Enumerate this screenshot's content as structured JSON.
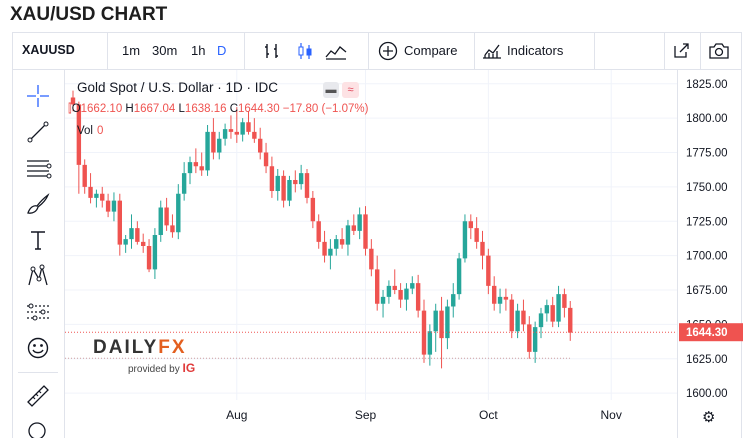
{
  "page": {
    "title": "XAU/USD CHART"
  },
  "toolbar": {
    "symbol": "XAUUSD",
    "timeframes": [
      "1m",
      "30m",
      "1h",
      "D"
    ],
    "compare_label": "Compare",
    "indicators_label": "Indicators"
  },
  "legend": {
    "title": "Gold Spot / U.S. Dollar · 1D · IDC",
    "open_key": "O",
    "open": "1662.10",
    "high_key": "H",
    "high": "1667.04",
    "low_key": "L",
    "low": "1638.16",
    "close_key": "C",
    "close": "1644.30",
    "change": "−17.80 (−1.07%)",
    "volume_label": "Vol",
    "volume": "0"
  },
  "branding": {
    "logo": "DAILYFX",
    "logo_a": "DAILY",
    "logo_b": "FX",
    "provided_by": "provided by",
    "ig": "IG"
  },
  "colors": {
    "up": "#26a69a",
    "down": "#ef5350",
    "accent": "#2962ff",
    "grid": "#f0f3fa",
    "price_tag": "#ef5350"
  },
  "chart_data": {
    "type": "candlestick",
    "title": "Gold Spot / U.S. Dollar",
    "ylim": [
      1595,
      1835
    ],
    "y_ticks": [
      1600,
      1625,
      1650,
      1675,
      1700,
      1725,
      1750,
      1775,
      1800,
      1825
    ],
    "y_tick_labels": [
      "1600.00",
      "1625.00",
      "1650.00",
      "1675.00",
      "1700.00",
      "1725.00",
      "1750.00",
      "1775.00",
      "1800.00",
      "1825.00"
    ],
    "x_ticks": [
      {
        "label": "Aug",
        "index": 28
      },
      {
        "label": "Sep",
        "index": 50
      },
      {
        "label": "Oct",
        "index": 71
      },
      {
        "label": "Nov",
        "index": 92
      }
    ],
    "last_price": 1644.3,
    "last_price_label": "1644.30",
    "candles": [
      [
        1815,
        1820,
        1805,
        1810
      ],
      [
        1810,
        1812,
        1745,
        1766
      ],
      [
        1766,
        1770,
        1745,
        1750
      ],
      [
        1750,
        1760,
        1738,
        1742
      ],
      [
        1742,
        1748,
        1735,
        1745
      ],
      [
        1745,
        1750,
        1735,
        1740
      ],
      [
        1740,
        1745,
        1728,
        1732
      ],
      [
        1732,
        1746,
        1725,
        1740
      ],
      [
        1740,
        1745,
        1700,
        1708
      ],
      [
        1708,
        1715,
        1702,
        1712
      ],
      [
        1712,
        1730,
        1705,
        1720
      ],
      [
        1720,
        1725,
        1708,
        1710
      ],
      [
        1710,
        1716,
        1702,
        1707
      ],
      [
        1707,
        1712,
        1688,
        1690
      ],
      [
        1690,
        1720,
        1683,
        1715
      ],
      [
        1715,
        1740,
        1710,
        1735
      ],
      [
        1735,
        1742,
        1718,
        1722
      ],
      [
        1722,
        1730,
        1713,
        1717
      ],
      [
        1717,
        1752,
        1712,
        1745
      ],
      [
        1745,
        1768,
        1740,
        1760
      ],
      [
        1760,
        1772,
        1752,
        1768
      ],
      [
        1768,
        1778,
        1760,
        1765
      ],
      [
        1765,
        1775,
        1758,
        1762
      ],
      [
        1762,
        1795,
        1758,
        1790
      ],
      [
        1790,
        1800,
        1770,
        1775
      ],
      [
        1775,
        1790,
        1770,
        1785
      ],
      [
        1785,
        1796,
        1780,
        1792
      ],
      [
        1792,
        1802,
        1785,
        1790
      ],
      [
        1790,
        1808,
        1782,
        1788
      ],
      [
        1788,
        1800,
        1783,
        1797
      ],
      [
        1797,
        1805,
        1788,
        1790
      ],
      [
        1790,
        1800,
        1782,
        1785
      ],
      [
        1785,
        1793,
        1770,
        1775
      ],
      [
        1775,
        1782,
        1760,
        1765
      ],
      [
        1765,
        1772,
        1742,
        1747
      ],
      [
        1747,
        1763,
        1740,
        1758
      ],
      [
        1758,
        1762,
        1735,
        1740
      ],
      [
        1740,
        1758,
        1736,
        1755
      ],
      [
        1755,
        1762,
        1746,
        1752
      ],
      [
        1752,
        1766,
        1748,
        1760
      ],
      [
        1760,
        1763,
        1738,
        1742
      ],
      [
        1742,
        1747,
        1720,
        1725
      ],
      [
        1725,
        1730,
        1705,
        1710
      ],
      [
        1710,
        1718,
        1695,
        1700
      ],
      [
        1700,
        1712,
        1690,
        1705
      ],
      [
        1705,
        1715,
        1700,
        1712
      ],
      [
        1712,
        1720,
        1705,
        1708
      ],
      [
        1708,
        1726,
        1700,
        1722
      ],
      [
        1722,
        1730,
        1715,
        1718
      ],
      [
        1718,
        1735,
        1712,
        1730
      ],
      [
        1730,
        1736,
        1700,
        1705
      ],
      [
        1705,
        1712,
        1685,
        1690
      ],
      [
        1690,
        1700,
        1660,
        1665
      ],
      [
        1665,
        1675,
        1655,
        1670
      ],
      [
        1670,
        1682,
        1665,
        1678
      ],
      [
        1678,
        1690,
        1672,
        1675
      ],
      [
        1675,
        1680,
        1662,
        1668
      ],
      [
        1668,
        1680,
        1660,
        1676
      ],
      [
        1676,
        1685,
        1672,
        1680
      ],
      [
        1680,
        1686,
        1655,
        1660
      ],
      [
        1660,
        1668,
        1622,
        1628
      ],
      [
        1628,
        1650,
        1620,
        1645
      ],
      [
        1645,
        1665,
        1630,
        1660
      ],
      [
        1660,
        1670,
        1618,
        1640
      ],
      [
        1640,
        1668,
        1632,
        1663
      ],
      [
        1663,
        1680,
        1655,
        1672
      ],
      [
        1672,
        1702,
        1668,
        1698
      ],
      [
        1698,
        1730,
        1695,
        1725
      ],
      [
        1725,
        1730,
        1712,
        1720
      ],
      [
        1720,
        1728,
        1705,
        1710
      ],
      [
        1710,
        1718,
        1690,
        1700
      ],
      [
        1700,
        1705,
        1672,
        1678
      ],
      [
        1678,
        1685,
        1660,
        1665
      ],
      [
        1665,
        1676,
        1658,
        1670
      ],
      [
        1670,
        1676,
        1660,
        1668
      ],
      [
        1668,
        1672,
        1640,
        1645
      ],
      [
        1645,
        1665,
        1640,
        1660
      ],
      [
        1660,
        1668,
        1645,
        1650
      ],
      [
        1650,
        1656,
        1625,
        1630
      ],
      [
        1630,
        1652,
        1622,
        1648
      ],
      [
        1648,
        1662,
        1640,
        1658
      ],
      [
        1658,
        1668,
        1652,
        1664
      ],
      [
        1664,
        1670,
        1648,
        1652
      ],
      [
        1652,
        1678,
        1648,
        1672
      ],
      [
        1672,
        1676,
        1655,
        1662
      ],
      [
        1662,
        1667,
        1638,
        1644
      ]
    ]
  }
}
